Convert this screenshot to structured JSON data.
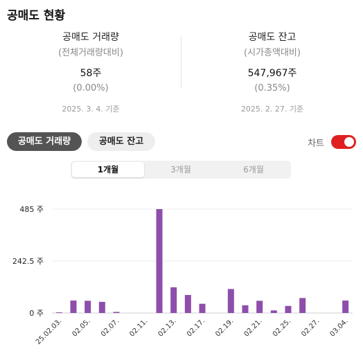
{
  "page_title": "공매도 현황",
  "summary": {
    "volume": {
      "label": "공매도 거래량",
      "sublabel": "(전체거래량대비)",
      "value": "58주",
      "percent": "(0.00%)",
      "date": "2025. 3. 4. 기준"
    },
    "balance": {
      "label": "공매도 잔고",
      "sublabel": "(시가총액대비)",
      "value": "547,967주",
      "percent": "(0.35%)",
      "date": "2025. 2. 27. 기준"
    }
  },
  "tabs": {
    "volume": "공매도 거래량",
    "balance": "공매도 잔고",
    "active": "volume"
  },
  "chart_toggle": {
    "label": "차트",
    "on": true,
    "color": "#e02020"
  },
  "periods": [
    "1개월",
    "3개월",
    "6개월"
  ],
  "active_period": "1개월",
  "chart_data": {
    "type": "bar",
    "color": "#8e4eab",
    "y_tick_labels": [
      "485 주",
      "242.5 주",
      "0 주"
    ],
    "ylim": [
      0,
      485
    ],
    "x": [
      "25.02.03.",
      "02.04.",
      "02.05.",
      "02.06.",
      "02.07.",
      "02.10.",
      "02.11.",
      "02.12.",
      "02.13.",
      "02.14.",
      "02.17.",
      "02.18.",
      "02.19.",
      "02.20.",
      "02.21.",
      "02.24.",
      "02.25.",
      "02.26.",
      "02.27.",
      "02.28.",
      "03.04."
    ],
    "values": [
      3,
      58,
      57,
      52,
      5,
      0,
      0,
      485,
      120,
      84,
      43,
      0,
      112,
      36,
      57,
      12,
      33,
      70,
      0,
      0,
      58
    ],
    "x_tick_labels": [
      "25.02.03.",
      "02.05.",
      "02.07.",
      "02.11.",
      "02.13.",
      "02.17.",
      "02.19.",
      "02.21.",
      "02.25.",
      "02.27.",
      "03.04."
    ],
    "grid": true
  }
}
